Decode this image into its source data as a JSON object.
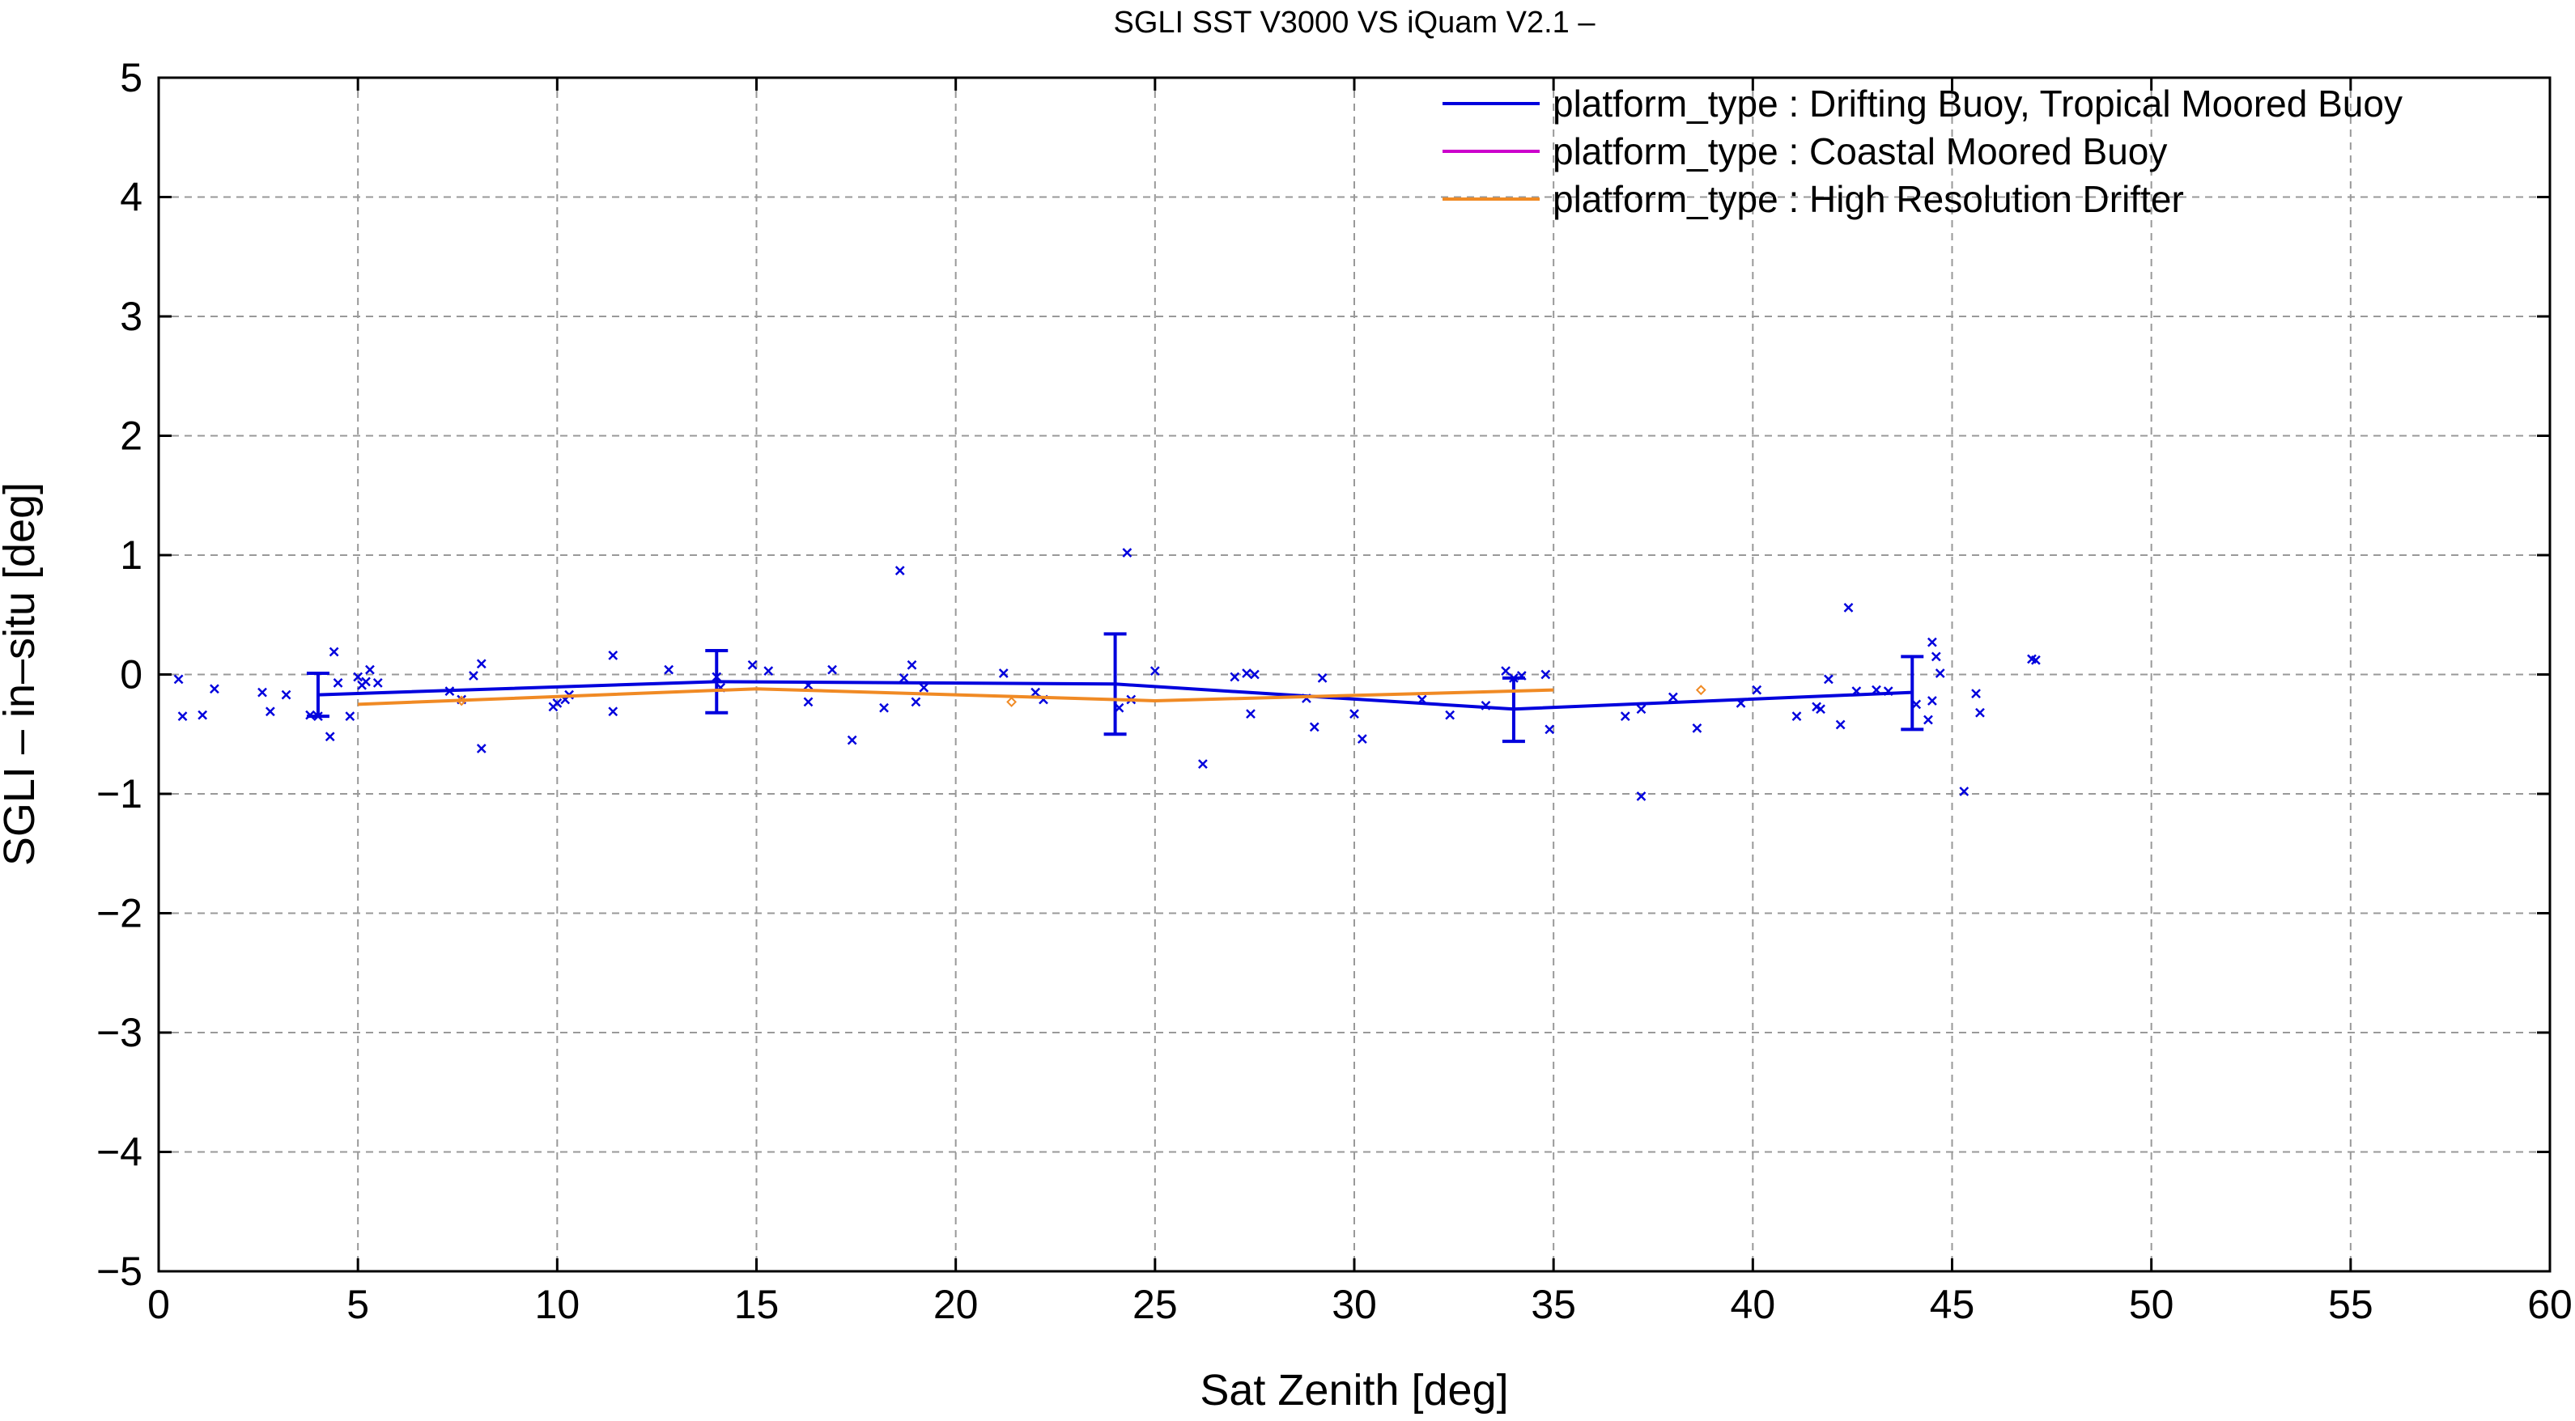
{
  "chart_data": {
    "type": "scatter",
    "title": "SGLI SST V3000 VS iQuam V2.1  –",
    "xlabel": "Sat Zenith [deg]",
    "ylabel": "SGLI – in–situ [deg]",
    "xlim": [
      0,
      60
    ],
    "ylim": [
      -5,
      5
    ],
    "x_ticks": [
      0,
      5,
      10,
      15,
      20,
      25,
      30,
      35,
      40,
      45,
      50,
      55,
      60
    ],
    "y_ticks": [
      -5,
      -4,
      -3,
      -2,
      -1,
      0,
      1,
      2,
      3,
      4,
      5
    ],
    "x_tick_labels": [
      "0",
      "5",
      "10",
      "15",
      "20",
      "25",
      "30",
      "35",
      "40",
      "45",
      "50",
      "55",
      "60"
    ],
    "y_tick_labels": [
      "−5",
      "−4",
      "−3",
      "−2",
      "−1",
      "0",
      "1",
      "2",
      "3",
      "4",
      "5"
    ],
    "grid": true,
    "legend_position": "top-right",
    "series": [
      {
        "name": "platform_type : Drifting Buoy, Tropical Moored Buoy",
        "color": "#0000dd",
        "marker": "x",
        "points": [
          [
            0.5,
            -0.04
          ],
          [
            0.6,
            -0.35
          ],
          [
            1.1,
            -0.34
          ],
          [
            1.4,
            -0.12
          ],
          [
            2.6,
            -0.15
          ],
          [
            2.8,
            -0.31
          ],
          [
            3.2,
            -0.17
          ],
          [
            3.8,
            -0.34
          ],
          [
            4.0,
            -0.35
          ],
          [
            4.3,
            -0.52
          ],
          [
            4.4,
            0.19
          ],
          [
            4.5,
            -0.07
          ],
          [
            4.8,
            -0.35
          ],
          [
            5.0,
            -0.02
          ],
          [
            5.1,
            -0.09
          ],
          [
            5.2,
            -0.06
          ],
          [
            5.3,
            0.04
          ],
          [
            5.5,
            -0.07
          ],
          [
            7.3,
            -0.14
          ],
          [
            7.6,
            -0.21
          ],
          [
            7.9,
            -0.01
          ],
          [
            8.1,
            0.09
          ],
          [
            8.1,
            -0.62
          ],
          [
            9.9,
            -0.27
          ],
          [
            10.0,
            -0.24
          ],
          [
            10.2,
            -0.21
          ],
          [
            10.3,
            -0.17
          ],
          [
            11.4,
            -0.31
          ],
          [
            11.4,
            0.16
          ],
          [
            12.8,
            0.04
          ],
          [
            14.0,
            -0.02
          ],
          [
            14.1,
            -0.11
          ],
          [
            14.9,
            0.08
          ],
          [
            15.3,
            0.03
          ],
          [
            16.3,
            -0.09
          ],
          [
            16.3,
            -0.23
          ],
          [
            16.9,
            0.04
          ],
          [
            17.4,
            -0.55
          ],
          [
            18.2,
            -0.28
          ],
          [
            18.6,
            0.87
          ],
          [
            18.7,
            -0.03
          ],
          [
            18.9,
            0.08
          ],
          [
            19.0,
            -0.23
          ],
          [
            19.2,
            -0.11
          ],
          [
            21.2,
            0.01
          ],
          [
            22.0,
            -0.15
          ],
          [
            22.2,
            -0.21
          ],
          [
            24.1,
            -0.28
          ],
          [
            24.3,
            1.02
          ],
          [
            24.4,
            -0.21
          ],
          [
            25.0,
            0.03
          ],
          [
            26.2,
            -0.75
          ],
          [
            27.0,
            -0.02
          ],
          [
            27.3,
            0.01
          ],
          [
            27.4,
            -0.33
          ],
          [
            27.5,
            0.0
          ],
          [
            28.8,
            -0.2
          ],
          [
            29.0,
            -0.44
          ],
          [
            29.2,
            -0.03
          ],
          [
            30.0,
            -0.33
          ],
          [
            30.2,
            -0.54
          ],
          [
            31.7,
            -0.21
          ],
          [
            32.4,
            -0.34
          ],
          [
            33.3,
            -0.26
          ],
          [
            33.8,
            0.03
          ],
          [
            34.0,
            -0.03
          ],
          [
            34.2,
            -0.01
          ],
          [
            34.8,
            0.0
          ],
          [
            34.9,
            -0.46
          ],
          [
            36.8,
            -0.35
          ],
          [
            37.2,
            -1.02
          ],
          [
            37.2,
            -0.29
          ],
          [
            38.0,
            -0.19
          ],
          [
            38.6,
            -0.45
          ],
          [
            39.7,
            -0.24
          ],
          [
            40.1,
            -0.13
          ],
          [
            41.1,
            -0.35
          ],
          [
            41.6,
            -0.27
          ],
          [
            41.7,
            -0.29
          ],
          [
            41.9,
            -0.04
          ],
          [
            42.2,
            -0.42
          ],
          [
            42.4,
            0.56
          ],
          [
            42.6,
            -0.14
          ],
          [
            43.1,
            -0.13
          ],
          [
            43.4,
            -0.14
          ],
          [
            44.1,
            -0.25
          ],
          [
            44.4,
            -0.38
          ],
          [
            44.5,
            0.27
          ],
          [
            44.5,
            -0.22
          ],
          [
            44.6,
            0.15
          ],
          [
            44.7,
            0.01
          ],
          [
            45.3,
            -0.98
          ],
          [
            45.6,
            -0.16
          ],
          [
            45.7,
            -0.32
          ],
          [
            47.0,
            0.13
          ],
          [
            47.1,
            0.12
          ]
        ],
        "mean_line": [
          [
            4,
            -0.17
          ],
          [
            14,
            -0.06
          ],
          [
            24,
            -0.08
          ],
          [
            34,
            -0.29
          ],
          [
            44,
            -0.15
          ]
        ],
        "error_bars": [
          {
            "x": 4,
            "low": -0.35,
            "high": 0.01
          },
          {
            "x": 14,
            "low": -0.32,
            "high": 0.2
          },
          {
            "x": 24,
            "low": -0.5,
            "high": 0.34
          },
          {
            "x": 34,
            "low": -0.56,
            "high": -0.03
          },
          {
            "x": 44,
            "low": -0.46,
            "high": 0.15
          }
        ]
      },
      {
        "name": "platform_type : Coastal Moored Buoy",
        "color": "#cc00cc",
        "marker": "x",
        "points": []
      },
      {
        "name": "platform_type : High Resolution Drifter",
        "color": "#f08a24",
        "marker": "diamond",
        "points": [
          [
            7.6,
            -0.22
          ],
          [
            21.4,
            -0.23
          ],
          [
            38.7,
            -0.13
          ]
        ],
        "mean_line": [
          [
            5,
            -0.25
          ],
          [
            15,
            -0.12
          ],
          [
            25,
            -0.22
          ],
          [
            35,
            -0.13
          ]
        ]
      }
    ]
  }
}
